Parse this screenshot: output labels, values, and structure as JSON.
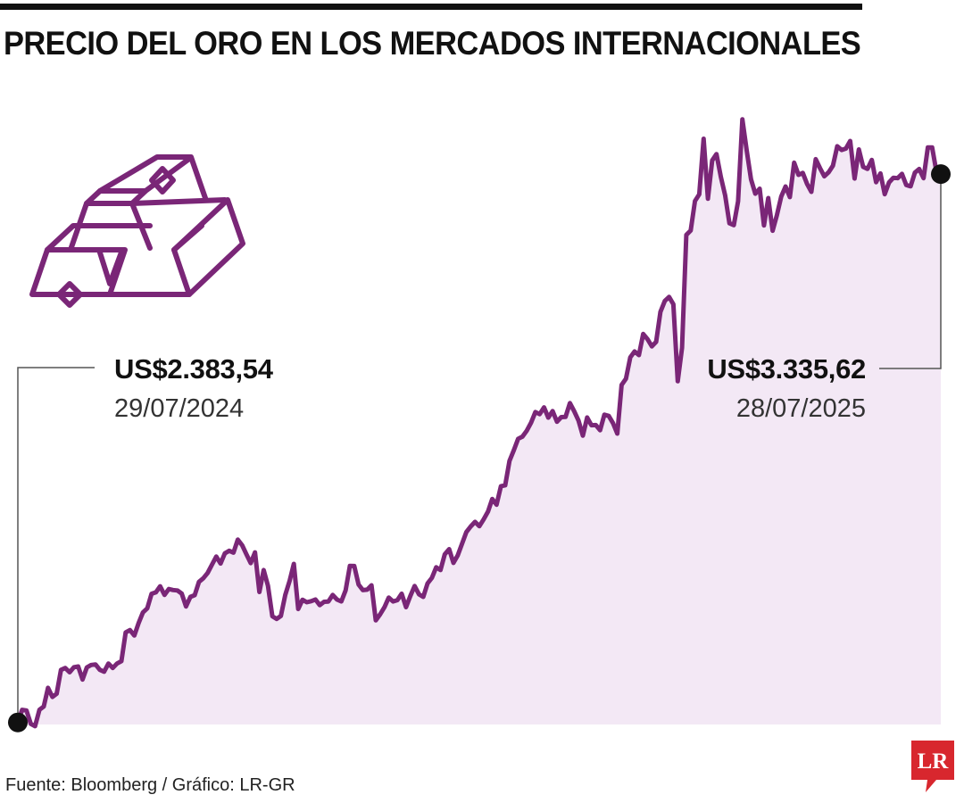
{
  "header": {
    "title": "PRECIO DEL ORO EN LOS MERCADOS INTERNACIONALES"
  },
  "annotations": {
    "start_value": "US$2.383,54",
    "start_date": "29/07/2024",
    "end_value": "US$3.335,62",
    "end_date": "28/07/2025"
  },
  "footer": {
    "source": "Fuente: Bloomberg / Gráfico: LR-GR"
  },
  "logo": {
    "text": "LR"
  },
  "colors": {
    "line": "#7a2677",
    "area": "#f3e8f5",
    "accent": "#d8272e",
    "text": "#111111"
  },
  "icon": "gold-bars-icon",
  "chart_data": {
    "type": "area",
    "title": "PRECIO DEL ORO EN LOS MERCADOS INTERNACIONALES",
    "xlabel": "",
    "ylabel": "",
    "x_start": "29/07/2024",
    "x_end": "28/07/2025",
    "y_unit": "US$",
    "grid": false,
    "axes_visible": false,
    "start_point": {
      "date": "29/07/2024",
      "value": 2383.54
    },
    "end_point": {
      "date": "28/07/2025",
      "value": 3335.62
    },
    "values": [
      2383.54,
      2405.4,
      2404.1,
      2381.1,
      2377.1,
      2405.5,
      2411.2,
      2443.7,
      2427.9,
      2433.4,
      2474.8,
      2478.0,
      2470.7,
      2479.5,
      2480.7,
      2458.1,
      2479.1,
      2483.4,
      2484.2,
      2475.0,
      2471.5,
      2485.8,
      2478.0,
      2485.8,
      2489.8,
      2539.9,
      2543.9,
      2534.5,
      2556.1,
      2574.6,
      2581.7,
      2607.0,
      2609.5,
      2620.0,
      2605.0,
      2615.2,
      2613.4,
      2612.7,
      2607.3,
      2584.9,
      2601.5,
      2604.5,
      2627.6,
      2633.9,
      2643.0,
      2657.3,
      2671.6,
      2659.5,
      2677.1,
      2681.6,
      2678.3,
      2701.0,
      2691.3,
      2675.4,
      2660.2,
      2678.9,
      2610.0,
      2648.1,
      2620.9,
      2568.1,
      2563.3,
      2568.6,
      2605.0,
      2628.9,
      2658.9,
      2580.5,
      2596.5,
      2592.3,
      2594.1,
      2597.1,
      2587.3,
      2593.0,
      2593.5,
      2604.9,
      2596.9,
      2593.6,
      2612.8,
      2655.4,
      2655.2,
      2623.1,
      2613.3,
      2614.1,
      2621.6,
      2560.8,
      2571.3,
      2583.6,
      2600.3,
      2593.7,
      2595.9,
      2607.1,
      2583.7,
      2603.1,
      2620.4,
      2606.0,
      2601.5,
      2624.9,
      2634.7,
      2652.9,
      2648.1,
      2675.6,
      2684.4,
      2660.5,
      2673.6,
      2694.0,
      2714.2,
      2723.8,
      2731.8,
      2724.3,
      2736.0,
      2749.6,
      2771.7,
      2761.5,
      2793.8,
      2795.4,
      2837.7,
      2856.4,
      2876.1,
      2879.7,
      2890.0,
      2904.1,
      2922.5,
      2918.8,
      2930.6,
      2912.7,
      2924.2,
      2905.6,
      2913.7,
      2914.2,
      2938.0,
      2923.9,
      2907.8,
      2881.4,
      2913.0,
      2899.6,
      2899.9,
      2890.9,
      2917.9,
      2915.7,
      2903.1,
      2885.1,
      2969.6,
      2980.4,
      3017.3,
      3027.7,
      3021.4,
      3058.1,
      3049.1,
      3036.6,
      3044.5,
      3096.3,
      3115.4,
      3122.3,
      3109.6,
      2975.9,
      3034.0,
      3230.1,
      3237.6,
      3288.9,
      3300.6,
      3397.1,
      3293.0,
      3359.4,
      3370.4,
      3330.7,
      3298.9,
      3250.4,
      3247.0,
      3288.4,
      3430.8,
      3376.2,
      3326.6,
      3301.6,
      3310.3,
      3246.5,
      3294.1,
      3237.4,
      3264.5,
      3296.5,
      3314.2,
      3295.8,
      3355.6,
      3334.3,
      3337.7,
      3318.5,
      3304.8,
      3361.5,
      3345.9,
      3331.8,
      3338.9,
      3350.4,
      3384.0,
      3377.6,
      3380.0,
      3393.1,
      3327.9,
      3378.4,
      3348.2,
      3344.7,
      3360.3,
      3321.6,
      3336.8,
      3300.7,
      3321.1,
      3329.3,
      3328.5,
      3336.0,
      3316.6,
      3314.5,
      3338.3,
      3344.6,
      3328.5,
      3382.0,
      3382.0,
      3338.9,
      3335.62
    ]
  }
}
